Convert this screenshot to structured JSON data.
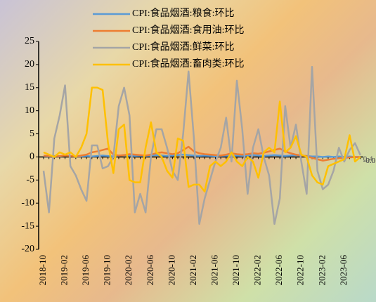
{
  "chart_data": {
    "type": "line",
    "categories": [
      "2018-10",
      null,
      null,
      null,
      "2019-02",
      null,
      null,
      null,
      "2019-06",
      null,
      null,
      null,
      "2019-10",
      null,
      null,
      null,
      "2020-02",
      null,
      null,
      null,
      "2020-06",
      null,
      null,
      null,
      "2020-10",
      null,
      null,
      null,
      "2021-02",
      null,
      null,
      null,
      "2021-06",
      null,
      null,
      null,
      "2021-10",
      null,
      null,
      null,
      "2022-02",
      null,
      null,
      null,
      "2022-06",
      null,
      null,
      null,
      "2022-10",
      null,
      null,
      null,
      "2023-02",
      null,
      null,
      null,
      "2023-06",
      null,
      null,
      null
    ],
    "ylim": [
      -20,
      25
    ],
    "yticks": [
      -20,
      -15,
      -10,
      -5,
      0,
      5,
      10,
      15,
      20,
      25
    ],
    "series": [
      {
        "name": "CPI:食品烟酒:粮食:环比",
        "color": "#5b9bd5",
        "values": [
          0.2,
          0.1,
          0.2,
          0.1,
          0.3,
          0.2,
          0.1,
          0.1,
          0.2,
          0.1,
          0.2,
          0.3,
          0.2,
          0.1,
          0.3,
          0.4,
          0.3,
          0.2,
          0.3,
          0.2,
          0.3,
          0.4,
          0.3,
          0.2,
          0.3,
          0.4,
          0.5,
          0.4,
          0.3,
          0.2,
          0.3,
          0.2,
          0.1,
          0.2,
          0.3,
          0.2,
          0.3,
          0.2,
          0.3,
          0.4,
          0.3,
          0.2,
          0.3,
          0.4,
          0.3,
          0.2,
          0.3,
          0.4,
          0.3,
          0.2,
          0.1,
          0.1,
          0.0,
          0.1,
          0.0,
          0.1,
          0.0,
          0.1,
          0.0,
          -0.04
        ],
        "value_labels": [
          null,
          null,
          null,
          null,
          null,
          null,
          null,
          null,
          null,
          null,
          null,
          null,
          null,
          null,
          null,
          null,
          null,
          null,
          null,
          null,
          null,
          null,
          null,
          null,
          null,
          null,
          null,
          null,
          null,
          null,
          null,
          null,
          null,
          null,
          null,
          null,
          null,
          null,
          null,
          null,
          null,
          null,
          null,
          null,
          null,
          null,
          null,
          null,
          null,
          null,
          null,
          null,
          null,
          null,
          null,
          null,
          null,
          null,
          null,
          "-0.0"
        ]
      },
      {
        "name": "CPI:食品烟酒:食用油:环比",
        "color": "#ed7d31",
        "values": [
          0.3,
          0.2,
          0.1,
          0.2,
          0.3,
          0.2,
          0.1,
          0.3,
          0.5,
          1,
          1.2,
          1.5,
          1.8,
          0.5,
          0.3,
          0.4,
          0.6,
          0.5,
          0.4,
          0.3,
          0.5,
          0.8,
          1,
          0.8,
          0.6,
          0.8,
          1.5,
          2.2,
          1.2,
          0.8,
          0.6,
          0.5,
          0.4,
          0.3,
          0.5,
          0.8,
          0.6,
          0.5,
          0.6,
          0.8,
          0.7,
          0.9,
          1.2,
          1.5,
          1.8,
          1.2,
          0.8,
          0.5,
          0.3,
          0.2,
          -0.2,
          -0.5,
          -0.8,
          -0.6,
          -0.4,
          -0.3,
          -0.2,
          -0.1,
          0,
          -0.03
        ],
        "value_labels": [
          null,
          null,
          null,
          null,
          null,
          null,
          null,
          null,
          null,
          null,
          null,
          null,
          null,
          null,
          null,
          null,
          null,
          null,
          null,
          null,
          null,
          null,
          null,
          null,
          null,
          null,
          null,
          null,
          null,
          null,
          null,
          null,
          null,
          null,
          null,
          null,
          null,
          null,
          null,
          null,
          null,
          null,
          null,
          null,
          null,
          null,
          null,
          null,
          null,
          null,
          null,
          null,
          null,
          null,
          null,
          null,
          null,
          null,
          null,
          "-0.0"
        ]
      },
      {
        "name": "CPI:食品烟酒:鲜菜:环比",
        "color": "#a5a5a5",
        "values": [
          -3,
          -12,
          4,
          9,
          15.5,
          -2,
          -4,
          -7,
          -9.5,
          2.5,
          2.5,
          -2.5,
          -2,
          0,
          11,
          15,
          9,
          -12,
          -8,
          -12,
          0,
          6,
          6,
          2,
          -3,
          -5,
          5,
          18.5,
          4,
          -14.5,
          -9,
          -5,
          -1,
          2,
          8.5,
          -1,
          16.5,
          6,
          -8,
          2,
          6,
          0,
          -4,
          -14.5,
          -9,
          11,
          2,
          7,
          -1,
          -8,
          19.5,
          -3,
          -7,
          -6,
          -3,
          2,
          -1,
          1.5,
          3,
          0.4
        ],
        "value_labels": [
          null,
          null,
          null,
          null,
          null,
          null,
          null,
          null,
          null,
          null,
          null,
          null,
          null,
          null,
          null,
          null,
          null,
          null,
          null,
          null,
          null,
          null,
          null,
          null,
          null,
          null,
          null,
          null,
          null,
          null,
          null,
          null,
          null,
          null,
          null,
          null,
          null,
          null,
          null,
          null,
          null,
          null,
          null,
          null,
          null,
          null,
          null,
          null,
          null,
          null,
          null,
          null,
          null,
          null,
          null,
          null,
          null,
          null,
          null,
          "0.4"
        ]
      },
      {
        "name": "CPI:食品烟酒:畜肉类:环比",
        "color": "#ffc000",
        "values": [
          1,
          0.5,
          0,
          1,
          0.5,
          1,
          0,
          2,
          5,
          15,
          15,
          14.5,
          3,
          -3.5,
          6,
          7,
          -5,
          -5.5,
          -5.5,
          2,
          7.5,
          1,
          0,
          -3,
          -4.5,
          4,
          3.5,
          -6.5,
          -6,
          -6,
          -7.5,
          -2,
          -1,
          -2,
          -1,
          1,
          -1,
          -2,
          0,
          -1,
          -4.5,
          1,
          2,
          1,
          12,
          1,
          2,
          4.5,
          0.5,
          0,
          -4,
          -5.5,
          -6,
          -2,
          -1.5,
          -1,
          -0.5,
          4.7,
          -1,
          -0.02
        ],
        "value_labels": [
          null,
          null,
          null,
          null,
          null,
          null,
          null,
          null,
          null,
          null,
          null,
          null,
          null,
          null,
          null,
          null,
          null,
          null,
          null,
          null,
          null,
          null,
          null,
          null,
          null,
          null,
          null,
          null,
          null,
          null,
          null,
          null,
          null,
          null,
          null,
          null,
          null,
          null,
          null,
          null,
          null,
          null,
          null,
          null,
          null,
          null,
          null,
          null,
          null,
          null,
          null,
          null,
          null,
          null,
          null,
          null,
          null,
          null,
          null,
          "-0.0"
        ]
      }
    ]
  }
}
